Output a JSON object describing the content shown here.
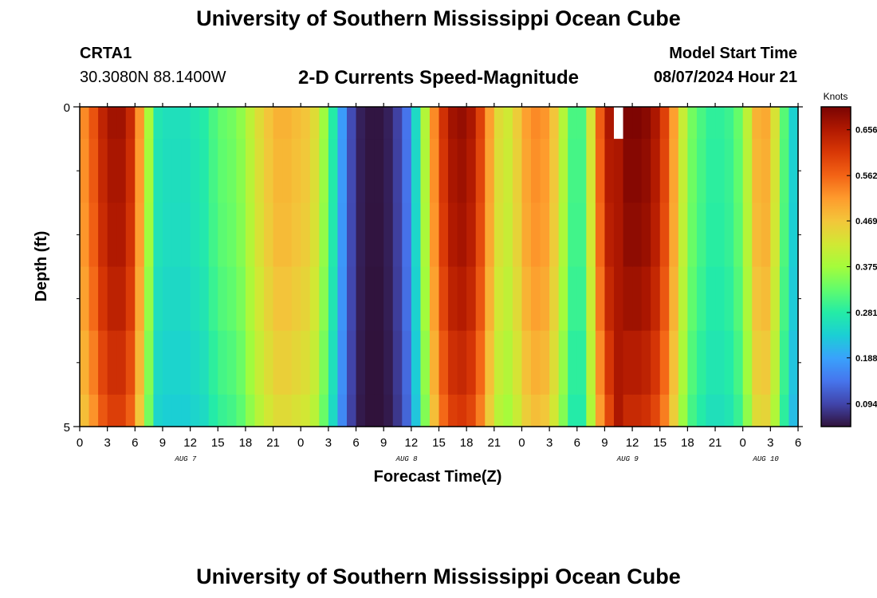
{
  "header": {
    "title": "University of Southern Mississippi Ocean Cube",
    "station_id": "CRTA1",
    "station_coords": "30.3080N  88.1400W",
    "chart_heading": "2-D Currents Speed-Magnitude",
    "model_start_label": "Model Start Time",
    "model_start_value": "08/07/2024 Hour 21"
  },
  "footer": {
    "title": "University of Southern Mississippi Ocean Cube"
  },
  "colors": {
    "colormap": [
      "#30123b",
      "#4145ab",
      "#4675ed",
      "#39a2fc",
      "#1bcfd4",
      "#24eca6",
      "#61fc6c",
      "#a4fc3b",
      "#d1e834",
      "#f3c63a",
      "#fe9b2d",
      "#f36315",
      "#d93806",
      "#b11901",
      "#7a0402"
    ],
    "missing": "#ffffff"
  },
  "chart_data": {
    "type": "heatmap",
    "title": "2-D Currents Speed-Magnitude",
    "xlabel": "Forecast Time(Z)",
    "ylabel": "Depth (ft)",
    "xlim": [
      0,
      78
    ],
    "ylim": [
      5,
      0
    ],
    "x_ticks": [
      0,
      3,
      6,
      9,
      12,
      15,
      18,
      21,
      24,
      27,
      30,
      33,
      36,
      39,
      42,
      45,
      48,
      51,
      54,
      57,
      60,
      63,
      66,
      69,
      72,
      75,
      78
    ],
    "x_tick_labels": [
      "0",
      "3",
      "6",
      "9",
      "12",
      "15",
      "18",
      "21",
      "0",
      "3",
      "6",
      "9",
      "12",
      "15",
      "18",
      "21",
      "0",
      "3",
      "6",
      "9",
      "12",
      "15",
      "18",
      "21",
      "0",
      "3",
      "6"
    ],
    "date_labels": [
      {
        "x": 11.5,
        "label": "AUG 7"
      },
      {
        "x": 35.5,
        "label": "AUG 8"
      },
      {
        "x": 59.5,
        "label": "AUG 9"
      },
      {
        "x": 74.5,
        "label": "AUG 10"
      }
    ],
    "y_ticks": [
      0,
      5
    ],
    "y_tick_labels": [
      "0",
      "5"
    ],
    "depth_bins": [
      0,
      0.5,
      1.5,
      2.5,
      3.5,
      4.5,
      5
    ],
    "colorbar": {
      "label": "Knots",
      "vmin": 0.047,
      "vmax": 0.703,
      "ticks": [
        0.094,
        0.188,
        0.281,
        0.375,
        0.469,
        0.562,
        0.656
      ],
      "tick_labels": [
        "0.094",
        "0.188",
        "0.281",
        "0.375",
        "0.469",
        "0.562",
        "0.656"
      ]
    },
    "time_hours": [
      0,
      1,
      2,
      3,
      4,
      5,
      6,
      7,
      8,
      9,
      10,
      11,
      12,
      13,
      14,
      15,
      16,
      17,
      18,
      19,
      20,
      21,
      22,
      23,
      24,
      25,
      26,
      27,
      28,
      29,
      30,
      31,
      32,
      33,
      34,
      35,
      36,
      37,
      38,
      39,
      40,
      41,
      42,
      43,
      44,
      45,
      46,
      47,
      48,
      49,
      50,
      51,
      52,
      53,
      54,
      55,
      56,
      57,
      58,
      59,
      60,
      61,
      62,
      63,
      64,
      65,
      66,
      67,
      68,
      69,
      70,
      71,
      72,
      73,
      74,
      75,
      76,
      77
    ],
    "surface_speed_knots": [
      0.53,
      0.58,
      0.64,
      0.67,
      0.67,
      0.63,
      0.52,
      0.38,
      0.27,
      0.26,
      0.26,
      0.26,
      0.27,
      0.28,
      0.31,
      0.33,
      0.34,
      0.36,
      0.4,
      0.44,
      0.47,
      0.49,
      0.49,
      0.48,
      0.47,
      0.44,
      0.37,
      0.28,
      0.18,
      0.1,
      0.06,
      0.05,
      0.05,
      0.06,
      0.09,
      0.14,
      0.25,
      0.39,
      0.53,
      0.62,
      0.67,
      0.68,
      0.66,
      0.6,
      0.51,
      0.44,
      0.42,
      0.46,
      0.51,
      0.53,
      0.52,
      0.47,
      0.39,
      0.31,
      0.31,
      0.43,
      0.57,
      0.66,
      null,
      0.7,
      0.7,
      0.69,
      0.66,
      0.6,
      0.51,
      0.41,
      0.34,
      0.31,
      0.29,
      0.29,
      0.3,
      0.33,
      0.4,
      0.49,
      0.5,
      0.43,
      0.32,
      0.24
    ],
    "depth_factors": [
      1.0,
      0.99,
      0.98,
      0.96,
      0.93,
      0.9
    ]
  }
}
